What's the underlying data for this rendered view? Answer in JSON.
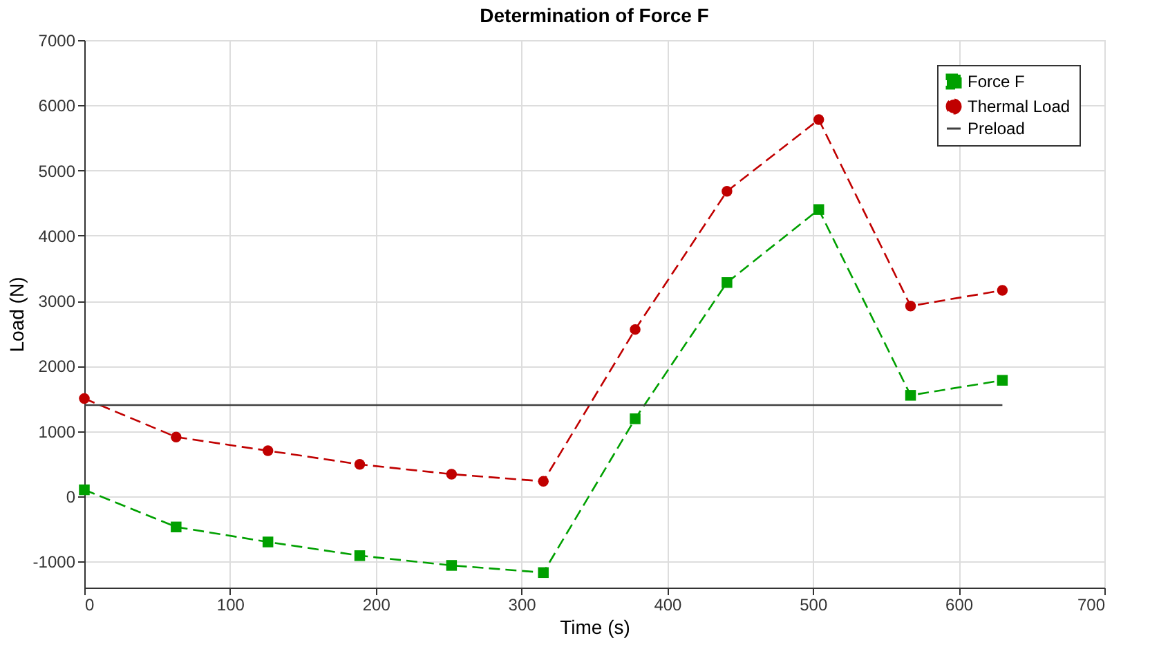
{
  "chart_data": {
    "type": "line",
    "title": "Determination of Force F",
    "xlabel": "Time (s)",
    "ylabel": "Load (N)",
    "x": [
      0,
      63,
      126,
      189,
      252,
      315,
      378,
      441,
      504,
      567,
      630
    ],
    "series": [
      {
        "name": "Force F",
        "color": "#00a000",
        "marker": "square",
        "line_style": "dashed",
        "values": [
          100,
          -470,
          -700,
          -910,
          -1060,
          -1170,
          1190,
          3280,
          4400,
          1550,
          1780
        ]
      },
      {
        "name": "Thermal Load",
        "color": "#c00000",
        "marker": "circle",
        "line_style": "dashed",
        "values": [
          1500,
          910,
          700,
          490,
          340,
          230,
          2560,
          4680,
          5780,
          2920,
          3160
        ]
      },
      {
        "name": "Preload",
        "color": "#404040",
        "marker": "none",
        "line_style": "solid",
        "x": [
          0,
          630
        ],
        "values": [
          1400,
          1400
        ]
      }
    ],
    "xlim": [
      0,
      700
    ],
    "xticks": [
      0,
      100,
      200,
      300,
      400,
      500,
      600,
      700
    ],
    "ylim": [
      -1400,
      7000
    ],
    "yticks": [
      -1000,
      0,
      1000,
      2000,
      3000,
      4000,
      5000,
      6000,
      7000
    ],
    "grid": true,
    "legend": "top right"
  }
}
